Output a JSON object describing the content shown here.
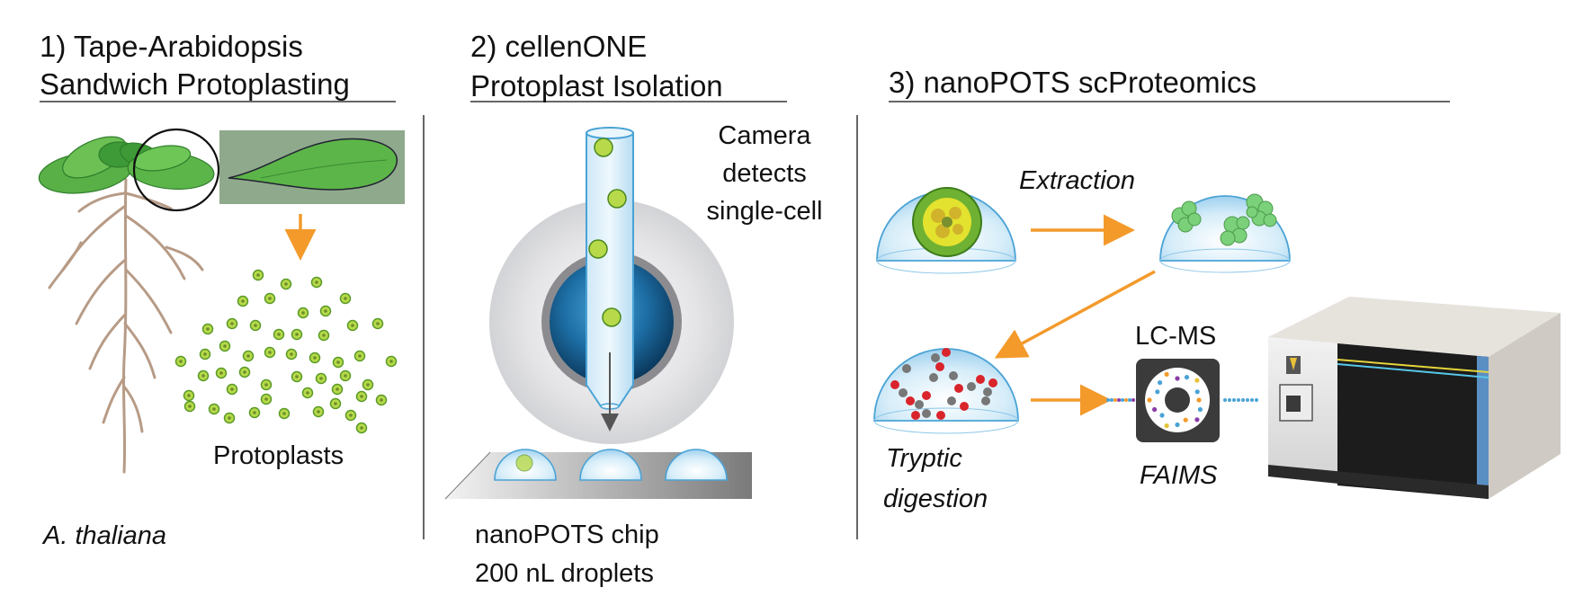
{
  "panel1": {
    "title_line1": "1) Tape-Arabidopsis",
    "title_line2": "Sandwich Protoplasting",
    "protoplasts_label": "Protoplasts",
    "species_label": "A. thaliana"
  },
  "panel2": {
    "title_line1": "2) cellenONE",
    "title_line2": "Protoplast Isolation",
    "camera_line1": "Camera",
    "camera_line2": "detects",
    "camera_line3": "single-cell",
    "chip_line1": "nanoPOTS chip",
    "chip_line2": "200 nL droplets"
  },
  "panel3": {
    "title": "3) nanoPOTS scProteomics",
    "extraction_label": "Extraction",
    "tryptic_line1": "Tryptic",
    "tryptic_line2": "digestion",
    "lcms_label": "LC-MS",
    "faims_label": "FAIMS"
  },
  "colors": {
    "arrow_orange": "#f39a2b",
    "leaf_green": "#5cb548",
    "protoplast_green": "#9fd13e",
    "droplet_blue": "#cfe9f8",
    "divider_gray": "#666666"
  }
}
